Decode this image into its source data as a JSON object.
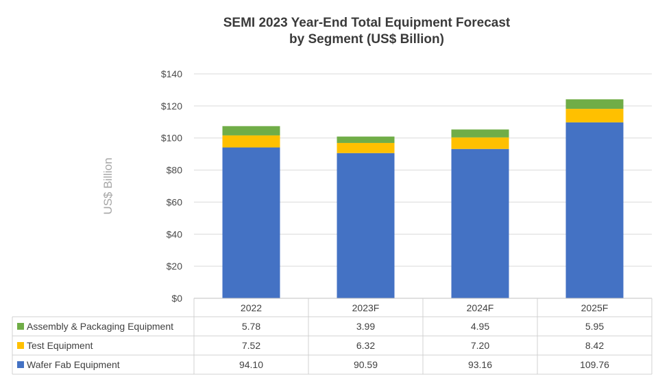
{
  "chart_data": {
    "type": "bar",
    "stacked": true,
    "title_line1": "SEMI 2023 Year-End Total Equipment Forecast",
    "title_line2": "by Segment (US$ Billion)",
    "xlabel": "",
    "ylabel": "US$ Billion",
    "ylim": [
      0,
      140
    ],
    "yticks": [
      0,
      20,
      40,
      60,
      80,
      100,
      120,
      140
    ],
    "ytick_labels": [
      "$0",
      "$20",
      "$40",
      "$60",
      "$80",
      "$100",
      "$120",
      "$140"
    ],
    "grid": true,
    "legend": "data-table",
    "categories": [
      "2022",
      "2023F",
      "2024F",
      "2025F"
    ],
    "series": [
      {
        "name": "Wafer Fab Equipment",
        "color": "#4472c4",
        "values": [
          94.1,
          90.59,
          93.16,
          109.76
        ],
        "labels": [
          "94.10",
          "90.59",
          "93.16",
          "109.76"
        ]
      },
      {
        "name": "Test Equipment",
        "color": "#ffc000",
        "values": [
          7.52,
          6.32,
          7.2,
          8.42
        ],
        "labels": [
          "7.52",
          "6.32",
          "7.20",
          "8.42"
        ]
      },
      {
        "name": "Assembly & Packaging Equipment",
        "color": "#70ad47",
        "values": [
          5.78,
          3.99,
          4.95,
          5.95
        ],
        "labels": [
          "5.78",
          "3.99",
          "4.95",
          "5.95"
        ]
      }
    ]
  }
}
